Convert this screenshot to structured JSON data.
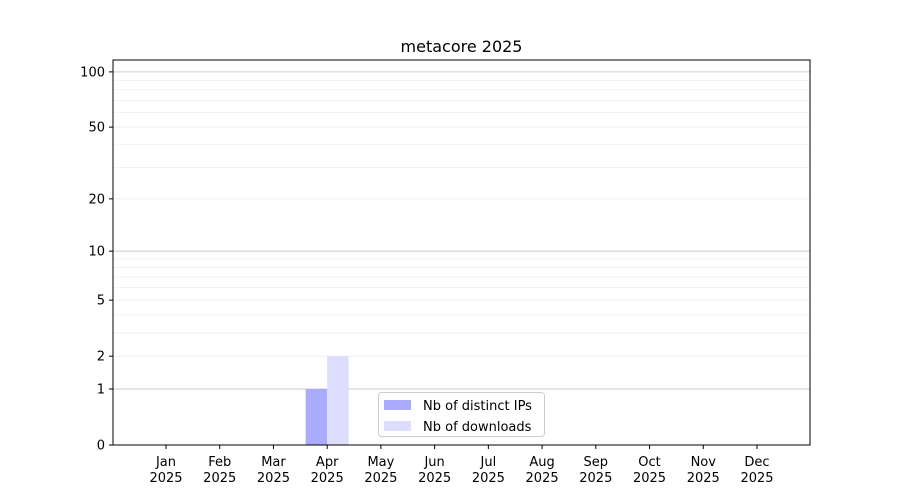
{
  "chart_data": {
    "type": "bar",
    "title": "metacore 2025",
    "xlabel": "",
    "ylabel": "",
    "categories": [
      "Jan\n2025",
      "Feb\n2025",
      "Mar\n2025",
      "Apr\n2025",
      "May\n2025",
      "Jun\n2025",
      "Jul\n2025",
      "Aug\n2025",
      "Sep\n2025",
      "Oct\n2025",
      "Nov\n2025",
      "Dec\n2025"
    ],
    "series": [
      {
        "name": "Nb of distinct IPs",
        "color": "#aaaaff",
        "values": [
          0,
          0,
          0,
          1,
          0,
          0,
          0,
          0,
          0,
          0,
          0,
          0
        ]
      },
      {
        "name": "Nb of downloads",
        "color": "#ddddff",
        "values": [
          0,
          0,
          0,
          2,
          0,
          0,
          0,
          0,
          0,
          0,
          0,
          0
        ]
      }
    ],
    "y_scale": "log(1+y)",
    "ylim": [
      0,
      116
    ],
    "yticks": [
      0,
      1,
      2,
      5,
      10,
      20,
      50,
      100
    ],
    "grid": true,
    "legend": "lower-center"
  }
}
